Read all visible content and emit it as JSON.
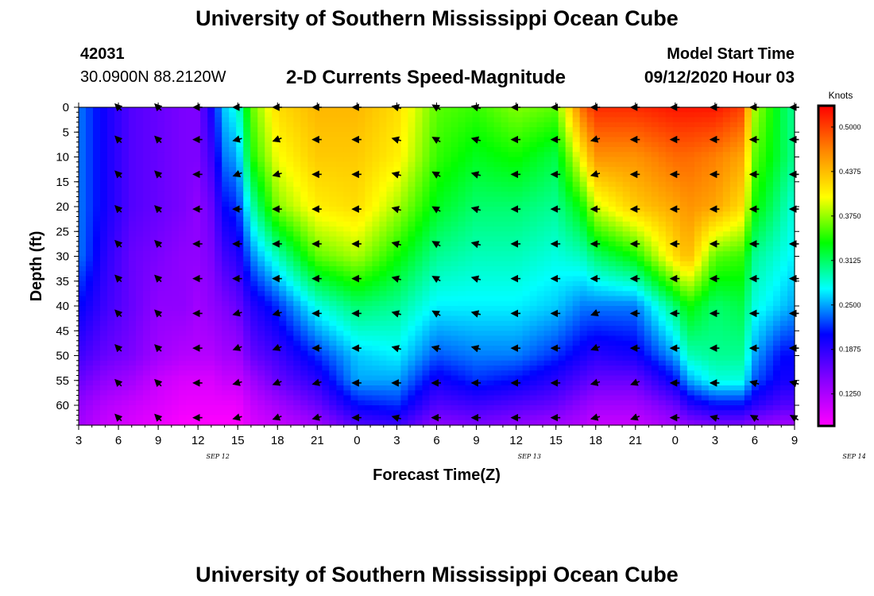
{
  "header": {
    "title": "University of Southern Mississippi Ocean Cube",
    "footer_title": "University of Southern Mississippi Ocean Cube",
    "station_id": "42031",
    "station_location": "30.0900N 88.2120W",
    "chart_title": "2-D Currents Speed-Magnitude",
    "model_start_label": "Model Start Time",
    "model_start_value": "09/12/2020 Hour 03"
  },
  "chart_data": {
    "type": "heatmap",
    "title": "2-D Currents Speed-Magnitude",
    "xlabel": "Forecast Time(Z)",
    "ylabel": "Depth (ft)",
    "colorbar_label": "Knots",
    "x_ticks": [
      "3",
      "6",
      "9",
      "12",
      "15",
      "18",
      "21",
      "0",
      "3",
      "6",
      "9",
      "12",
      "15",
      "18",
      "21",
      "0",
      "3",
      "6",
      "9"
    ],
    "x_hours": [
      3,
      6,
      9,
      12,
      15,
      18,
      21,
      24,
      27,
      30,
      33,
      36,
      39,
      42,
      45,
      48,
      51,
      54,
      57
    ],
    "date_labels": [
      {
        "label": "SEP 12",
        "hour": 13.5
      },
      {
        "label": "SEP 13",
        "hour": 37.0
      },
      {
        "label": "SEP 14",
        "hour": 61.5
      }
    ],
    "xlim": [
      3,
      57
    ],
    "y_ticks": [
      0,
      5,
      10,
      15,
      20,
      25,
      30,
      35,
      40,
      45,
      50,
      55,
      60
    ],
    "ylim": [
      0,
      64
    ],
    "colorbar_ticks": [
      0.5,
      0.4375,
      0.375,
      0.3125,
      0.25,
      0.1875,
      0.125
    ],
    "color_range": [
      0.08,
      0.53
    ],
    "colorscale": [
      "#ff00ff",
      "#8800ff",
      "#0000ff",
      "#00ffff",
      "#00ff00",
      "#ffff00",
      "#ff8800",
      "#ff0000"
    ],
    "times": [
      3,
      5,
      7,
      9,
      11,
      12,
      13,
      14,
      15,
      16,
      18,
      21,
      24,
      27,
      30,
      33,
      36,
      39,
      41,
      42,
      45,
      48,
      49,
      51,
      53,
      54,
      56,
      57
    ],
    "depths": [
      0,
      10,
      20,
      30,
      40,
      50,
      55,
      60,
      64
    ],
    "speed_columns": [
      [
        0.24,
        0.24,
        0.24,
        0.24,
        0.21,
        0.18,
        0.16,
        0.14,
        0.13
      ],
      [
        0.2,
        0.2,
        0.2,
        0.19,
        0.18,
        0.16,
        0.14,
        0.12,
        0.11
      ],
      [
        0.17,
        0.17,
        0.17,
        0.16,
        0.16,
        0.15,
        0.13,
        0.11,
        0.1
      ],
      [
        0.16,
        0.16,
        0.16,
        0.15,
        0.14,
        0.13,
        0.11,
        0.1,
        0.09
      ],
      [
        0.15,
        0.15,
        0.15,
        0.14,
        0.14,
        0.12,
        0.1,
        0.09,
        0.08
      ],
      [
        0.15,
        0.15,
        0.14,
        0.14,
        0.13,
        0.12,
        0.1,
        0.09,
        0.08
      ],
      [
        0.2,
        0.18,
        0.16,
        0.15,
        0.14,
        0.12,
        0.1,
        0.09,
        0.08
      ],
      [
        0.26,
        0.24,
        0.21,
        0.18,
        0.15,
        0.13,
        0.11,
        0.09,
        0.08
      ],
      [
        0.28,
        0.25,
        0.22,
        0.19,
        0.16,
        0.13,
        0.11,
        0.09,
        0.08
      ],
      [
        0.36,
        0.34,
        0.29,
        0.24,
        0.19,
        0.16,
        0.13,
        0.11,
        0.1
      ],
      [
        0.42,
        0.4,
        0.37,
        0.29,
        0.22,
        0.18,
        0.16,
        0.13,
        0.11
      ],
      [
        0.44,
        0.43,
        0.41,
        0.36,
        0.28,
        0.22,
        0.19,
        0.16,
        0.13
      ],
      [
        0.44,
        0.43,
        0.42,
        0.38,
        0.31,
        0.26,
        0.25,
        0.21,
        0.17
      ],
      [
        0.42,
        0.41,
        0.38,
        0.34,
        0.3,
        0.27,
        0.25,
        0.22,
        0.18
      ],
      [
        0.36,
        0.35,
        0.33,
        0.3,
        0.27,
        0.23,
        0.2,
        0.17,
        0.14
      ],
      [
        0.35,
        0.33,
        0.31,
        0.29,
        0.27,
        0.24,
        0.22,
        0.18,
        0.15
      ],
      [
        0.37,
        0.34,
        0.31,
        0.29,
        0.27,
        0.24,
        0.21,
        0.17,
        0.14
      ],
      [
        0.36,
        0.32,
        0.3,
        0.28,
        0.26,
        0.22,
        0.19,
        0.16,
        0.13
      ],
      [
        0.48,
        0.41,
        0.34,
        0.29,
        0.24,
        0.2,
        0.17,
        0.14,
        0.12
      ],
      [
        0.51,
        0.46,
        0.39,
        0.31,
        0.24,
        0.19,
        0.16,
        0.13,
        0.11
      ],
      [
        0.51,
        0.46,
        0.43,
        0.34,
        0.24,
        0.2,
        0.16,
        0.13,
        0.11
      ],
      [
        0.52,
        0.48,
        0.45,
        0.42,
        0.31,
        0.25,
        0.21,
        0.16,
        0.13
      ],
      [
        0.52,
        0.48,
        0.46,
        0.44,
        0.34,
        0.29,
        0.25,
        0.19,
        0.14
      ],
      [
        0.52,
        0.47,
        0.45,
        0.36,
        0.31,
        0.3,
        0.28,
        0.21,
        0.15
      ],
      [
        0.5,
        0.45,
        0.42,
        0.35,
        0.32,
        0.3,
        0.28,
        0.21,
        0.15
      ],
      [
        0.38,
        0.36,
        0.34,
        0.3,
        0.28,
        0.25,
        0.23,
        0.19,
        0.14
      ],
      [
        0.32,
        0.32,
        0.3,
        0.28,
        0.26,
        0.21,
        0.2,
        0.17,
        0.13
      ],
      [
        0.3,
        0.3,
        0.28,
        0.27,
        0.25,
        0.21,
        0.2,
        0.17,
        0.13
      ]
    ],
    "vector_times": [
      6,
      9,
      12,
      15,
      18,
      21,
      24,
      27,
      30,
      33,
      36,
      39,
      42,
      45,
      48,
      51,
      54,
      57
    ],
    "vector_depths": [
      0,
      6.5,
      13.5,
      20.5,
      27.5,
      34.5,
      41.5,
      48.5,
      55.5,
      62.5
    ],
    "vector_directions_deg": [
      [
        135,
        135,
        135,
        135,
        135,
        135,
        135,
        135,
        135,
        135
      ],
      [
        135,
        135,
        135,
        135,
        135,
        135,
        135,
        135,
        135,
        135
      ],
      [
        180,
        180,
        180,
        180,
        180,
        180,
        180,
        180,
        180,
        180
      ],
      [
        180,
        195,
        200,
        180,
        180,
        180,
        195,
        200,
        195,
        195
      ],
      [
        180,
        200,
        195,
        180,
        180,
        180,
        195,
        200,
        200,
        200
      ],
      [
        180,
        180,
        180,
        180,
        180,
        180,
        180,
        180,
        195,
        195
      ],
      [
        180,
        180,
        180,
        180,
        180,
        180,
        180,
        180,
        180,
        180
      ],
      [
        165,
        165,
        165,
        165,
        165,
        165,
        165,
        165,
        180,
        165
      ],
      [
        150,
        150,
        150,
        150,
        150,
        150,
        150,
        165,
        180,
        180
      ],
      [
        165,
        165,
        165,
        165,
        165,
        165,
        165,
        165,
        180,
        180
      ],
      [
        180,
        180,
        180,
        180,
        180,
        180,
        180,
        180,
        180,
        180
      ],
      [
        180,
        180,
        180,
        180,
        180,
        180,
        180,
        180,
        180,
        180
      ],
      [
        180,
        195,
        195,
        180,
        180,
        180,
        200,
        200,
        195,
        195
      ],
      [
        180,
        180,
        180,
        180,
        180,
        180,
        180,
        180,
        200,
        200
      ],
      [
        180,
        180,
        180,
        180,
        180,
        180,
        180,
        180,
        180,
        180
      ],
      [
        180,
        180,
        180,
        180,
        180,
        180,
        180,
        180,
        180,
        165
      ],
      [
        180,
        180,
        180,
        180,
        180,
        180,
        180,
        180,
        165,
        150
      ],
      [
        180,
        180,
        180,
        180,
        180,
        180,
        180,
        180,
        165,
        150
      ]
    ]
  }
}
